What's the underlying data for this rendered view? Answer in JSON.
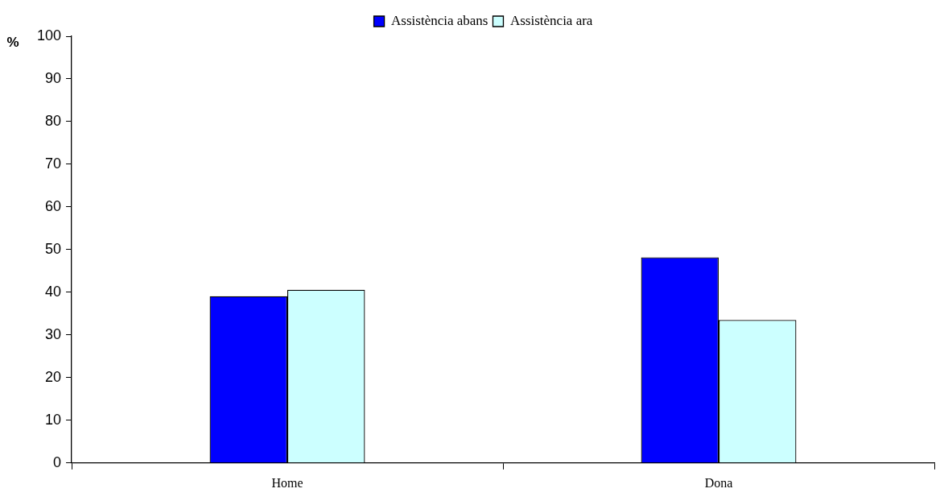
{
  "chart_data": {
    "type": "bar",
    "ylabel": "%",
    "categories": [
      "Home",
      "Dona"
    ],
    "series": [
      {
        "name": "Assistència abans",
        "color": "#0000ff",
        "values": [
          39.1,
          48.2
        ]
      },
      {
        "name": "Assistència ara",
        "color": "#ccffff",
        "values": [
          40.6,
          33.5
        ]
      }
    ],
    "ylim": [
      0,
      100
    ],
    "yticks": [
      0,
      10,
      20,
      30,
      40,
      50,
      60,
      70,
      80,
      90,
      100
    ],
    "grid": false,
    "legend": "top"
  }
}
